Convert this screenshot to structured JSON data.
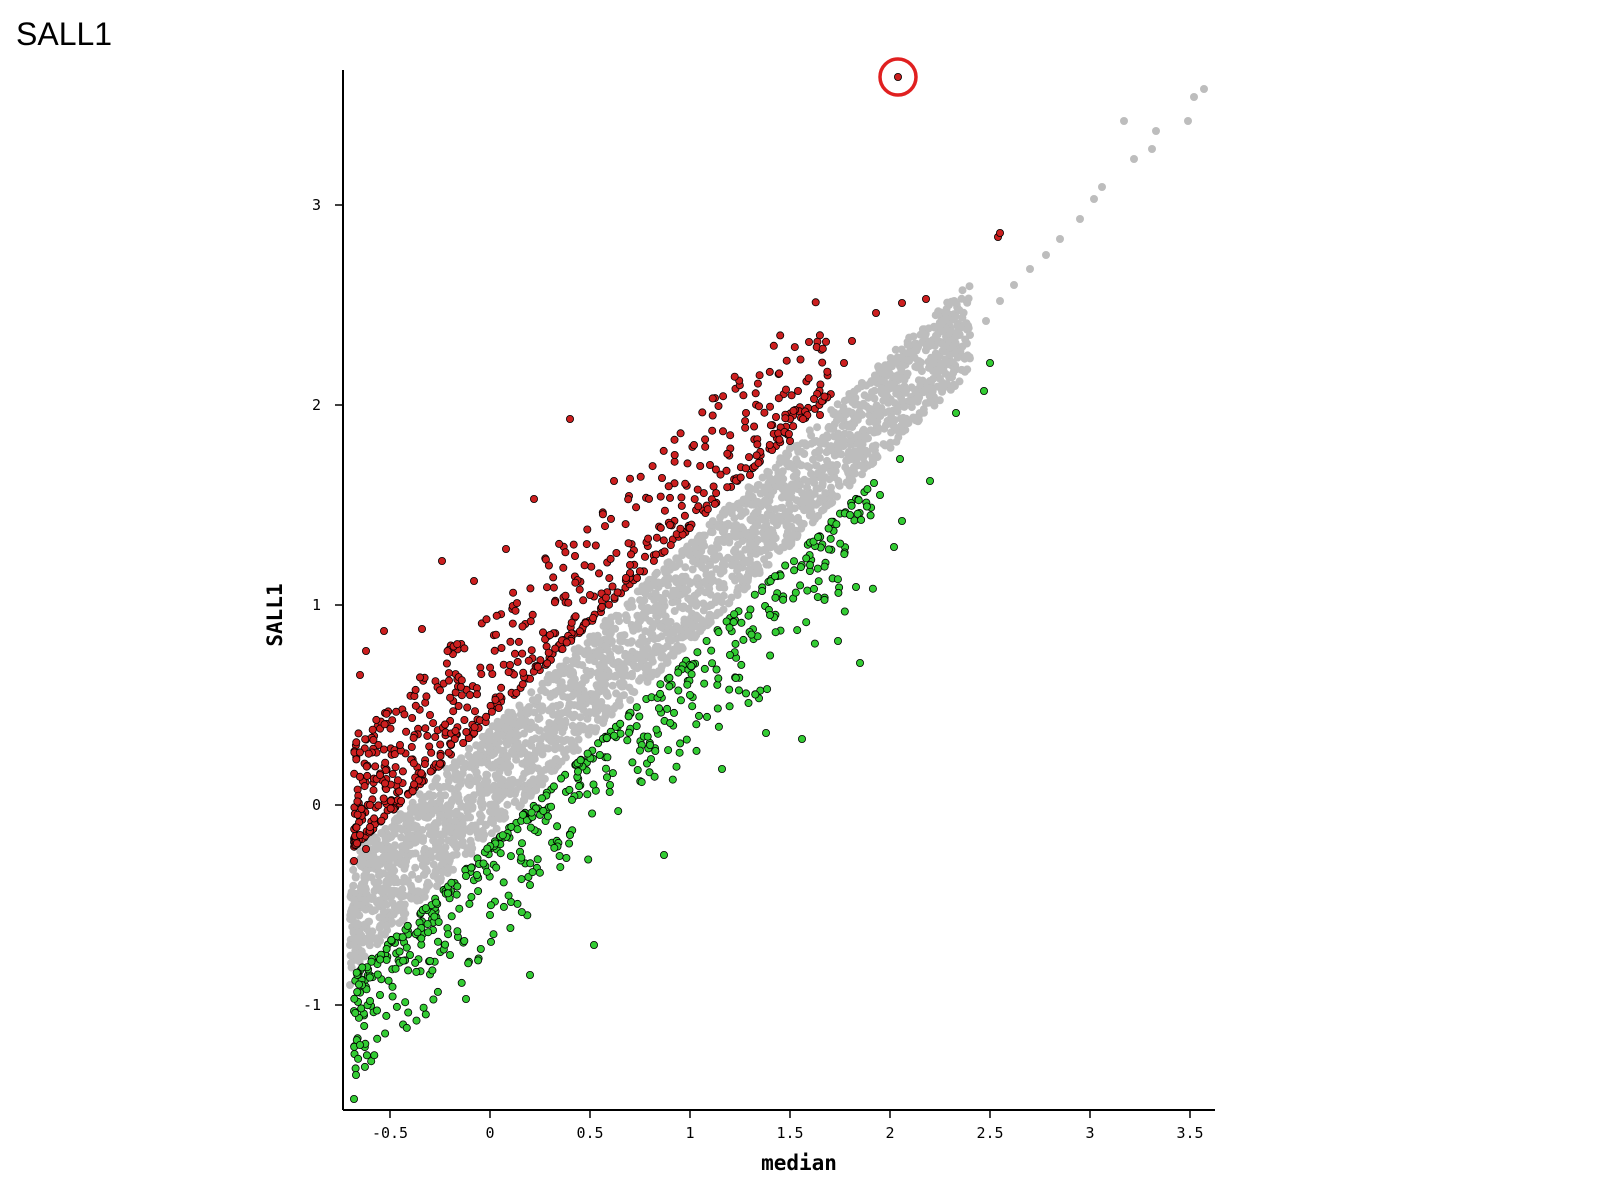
{
  "page_label": "SALL1",
  "chart_data": {
    "type": "scatter",
    "xlabel": "median",
    "ylabel": "SALL1",
    "xlim": [
      -0.75,
      3.65
    ],
    "ylim": [
      -1.5,
      3.6
    ],
    "xticks": [
      -0.5,
      0,
      0.5,
      1,
      1.5,
      2,
      2.5,
      3,
      3.5
    ],
    "xtick_labels": [
      "-0.5",
      "0",
      "0.5",
      "1",
      "1.5",
      "2",
      "2.5",
      "3",
      "3.5"
    ],
    "yticks": [
      -1,
      0,
      1,
      2,
      3
    ],
    "ytick_labels": [
      "-1",
      "0",
      "1",
      "2",
      "3"
    ],
    "grid": false,
    "colors": {
      "up": "#cc1f1f",
      "down": "#33cc33",
      "neutral": "#bdbdbd",
      "highlight": "#e02020"
    },
    "series": [
      {
        "category": "neutral",
        "points": [
          [
            3.57,
            3.58
          ],
          [
            3.52,
            3.54
          ],
          [
            3.49,
            3.42
          ],
          [
            3.33,
            3.37
          ],
          [
            3.31,
            3.28
          ],
          [
            3.22,
            3.23
          ],
          [
            3.17,
            3.42
          ],
          [
            3.06,
            3.09
          ],
          [
            3.02,
            3.03
          ],
          [
            2.95,
            2.93
          ],
          [
            2.85,
            2.83
          ],
          [
            2.78,
            2.75
          ],
          [
            2.7,
            2.68
          ],
          [
            2.62,
            2.6
          ],
          [
            2.55,
            2.52
          ],
          [
            2.48,
            2.42
          ],
          [
            2.4,
            2.35
          ],
          [
            2.3,
            2.25
          ],
          [
            2.2,
            2.12
          ],
          [
            2.1,
            2.02
          ],
          [
            1.9,
            1.98
          ],
          [
            1.8,
            1.85
          ],
          [
            1.7,
            1.7
          ],
          [
            1.55,
            1.6
          ],
          [
            1.4,
            1.48
          ],
          [
            1.25,
            1.35
          ],
          [
            1.1,
            1.2
          ],
          [
            0.95,
            1.05
          ],
          [
            0.8,
            0.92
          ],
          [
            0.65,
            0.78
          ],
          [
            0.5,
            0.65
          ],
          [
            0.35,
            0.5
          ],
          [
            0.2,
            0.38
          ],
          [
            0.05,
            0.22
          ],
          [
            -0.1,
            0.1
          ],
          [
            -0.25,
            -0.05
          ],
          [
            -0.4,
            -0.2
          ],
          [
            -0.55,
            -0.35
          ],
          [
            -0.65,
            -0.5
          ],
          [
            -0.7,
            -0.7
          ],
          [
            -0.7,
            -0.9
          ]
        ]
      },
      {
        "category": "up",
        "points": [
          [
            2.54,
            2.84
          ],
          [
            2.55,
            2.86
          ],
          [
            2.18,
            2.53
          ],
          [
            2.06,
            2.51
          ],
          [
            1.93,
            2.46
          ],
          [
            1.81,
            2.32
          ],
          [
            1.77,
            2.21
          ],
          [
            1.54,
            2.07
          ],
          [
            1.62,
            2.03
          ],
          [
            1.43,
            1.94
          ],
          [
            1.28,
            1.96
          ],
          [
            1.02,
            1.8
          ],
          [
            1.1,
            1.7
          ],
          [
            0.62,
            1.62
          ],
          [
            0.4,
            1.93
          ],
          [
            0.22,
            1.53
          ],
          [
            0.08,
            1.28
          ],
          [
            -0.24,
            1.22
          ],
          [
            -0.08,
            1.12
          ],
          [
            -0.53,
            0.87
          ],
          [
            -0.34,
            0.88
          ],
          [
            -0.62,
            0.77
          ],
          [
            -0.65,
            0.65
          ],
          [
            0.9,
            1.4
          ],
          [
            0.7,
            1.2
          ],
          [
            0.5,
            1.05
          ],
          [
            0.3,
            0.85
          ],
          [
            0.1,
            0.7
          ],
          [
            -0.1,
            0.55
          ],
          [
            -0.3,
            0.45
          ],
          [
            -0.45,
            0.3
          ],
          [
            -0.55,
            0.15
          ],
          [
            -0.6,
            0.0
          ],
          [
            -0.65,
            -0.15
          ],
          [
            -0.68,
            -0.28
          ],
          [
            -0.62,
            -0.22
          ],
          [
            1.3,
            1.65
          ],
          [
            1.5,
            1.82
          ],
          [
            1.65,
            1.95
          ]
        ]
      },
      {
        "category": "down",
        "points": [
          [
            2.5,
            2.21
          ],
          [
            2.47,
            2.07
          ],
          [
            2.33,
            1.96
          ],
          [
            2.2,
            1.62
          ],
          [
            2.05,
            1.73
          ],
          [
            1.92,
            1.61
          ],
          [
            2.06,
            1.42
          ],
          [
            2.02,
            1.29
          ],
          [
            1.83,
            1.09
          ],
          [
            1.74,
            0.82
          ],
          [
            1.85,
            0.71
          ],
          [
            1.56,
            0.33
          ],
          [
            1.38,
            0.36
          ],
          [
            1.16,
            0.18
          ],
          [
            0.87,
            -0.25
          ],
          [
            0.52,
            -0.7
          ],
          [
            0.2,
            -0.85
          ],
          [
            -0.12,
            -0.97
          ],
          [
            -0.3,
            -0.78
          ],
          [
            -0.4,
            -0.75
          ],
          [
            -0.6,
            -0.98
          ],
          [
            -0.65,
            -1.2
          ],
          [
            -0.67,
            -1.35
          ],
          [
            -0.68,
            -1.47
          ],
          [
            1.6,
            1.2
          ],
          [
            1.4,
            0.95
          ],
          [
            1.2,
            0.75
          ],
          [
            1.0,
            0.55
          ],
          [
            0.8,
            0.3
          ],
          [
            0.6,
            0.1
          ],
          [
            0.4,
            -0.15
          ],
          [
            0.2,
            -0.4
          ],
          [
            0.0,
            -0.55
          ],
          [
            -0.2,
            -0.75
          ],
          [
            -0.55,
            -0.95
          ],
          [
            1.8,
            1.45
          ],
          [
            1.95,
            1.55
          ]
        ]
      },
      {
        "category": "highlight",
        "points": [
          [
            2.04,
            3.64
          ]
        ]
      }
    ]
  }
}
